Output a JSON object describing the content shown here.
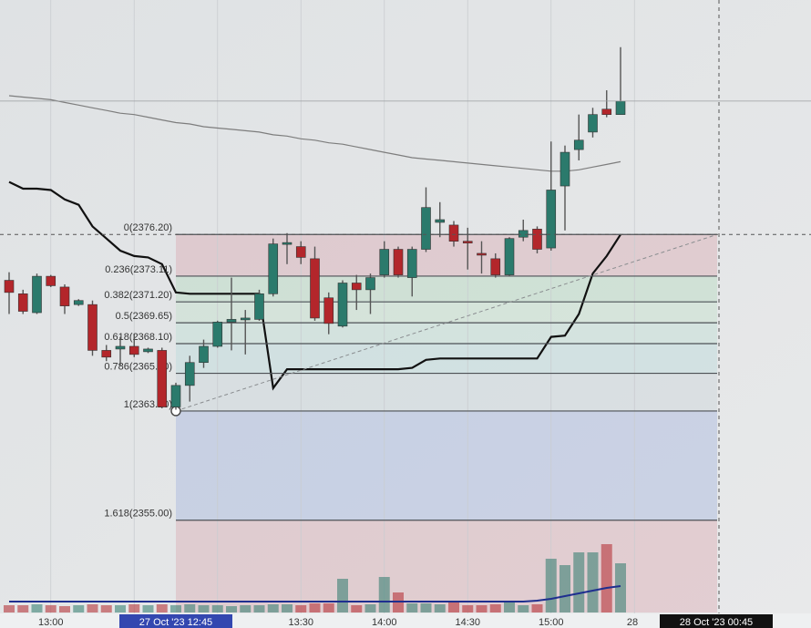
{
  "chart_data": {
    "type": "candlestick",
    "categories": [
      null,
      null,
      null,
      "13:00",
      null,
      null,
      null,
      null,
      null,
      null,
      null,
      null,
      "27 Oct '23 12:45",
      null,
      null,
      null,
      null,
      null,
      null,
      null,
      null,
      "13:30",
      null,
      null,
      null,
      null,
      null,
      "14:00",
      null,
      null,
      null,
      null,
      null,
      "14:30",
      null,
      null,
      null,
      null,
      null,
      "15:00",
      null,
      null,
      null,
      null,
      null
    ],
    "x_axis_end_label": "28",
    "crosshair_time": "28 Oct '23 00:45",
    "open": [
      2372.8,
      2371.8,
      2370.4,
      2373.1,
      2372.3,
      2371.0,
      2371.0,
      2367.6,
      2367.7,
      2367.9,
      2367.5,
      2367.6,
      2363.4,
      2365.0,
      2366.7,
      2367.9,
      2369.7,
      2369.9,
      2369.9,
      2371.8,
      2375.5,
      2375.3,
      2374.4,
      2371.5,
      2369.4,
      2372.6,
      2372.1,
      2373.2,
      2375.1,
      2373.0,
      2375.1,
      2377.1,
      2376.9,
      2375.7,
      2374.8,
      2374.4,
      2373.2,
      2376.0,
      2376.6,
      2375.2,
      2379.8,
      2382.5,
      2383.8,
      2385.5,
      2385.1
    ],
    "high": [
      2373.4,
      2372.1,
      2373.3,
      2373.2,
      2372.5,
      2371.4,
      2371.3,
      2368.0,
      2368.6,
      2368.8,
      2367.8,
      2367.8,
      2365.2,
      2367.2,
      2368.4,
      2369.8,
      2373.0,
      2370.6,
      2372.1,
      2375.9,
      2376.3,
      2375.7,
      2375.3,
      2371.9,
      2372.8,
      2373.2,
      2373.3,
      2375.7,
      2375.3,
      2375.3,
      2379.7,
      2378.6,
      2377.2,
      2376.7,
      2375.7,
      2374.8,
      2376.0,
      2377.3,
      2376.8,
      2383.1,
      2382.8,
      2385.1,
      2385.6,
      2386.9,
      2390.1
    ],
    "low": [
      2370.3,
      2370.3,
      2370.3,
      2372.3,
      2370.3,
      2370.9,
      2367.2,
      2366.8,
      2366.5,
      2367.1,
      2367.4,
      2363.3,
      2363.2,
      2363.8,
      2366.3,
      2367.8,
      2367.6,
      2367.3,
      2369.8,
      2371.6,
      2374.0,
      2374.0,
      2369.8,
      2368.8,
      2369.3,
      2370.6,
      2370.3,
      2373.0,
      2373.0,
      2371.6,
      2374.9,
      2376.0,
      2375.3,
      2373.6,
      2373.3,
      2373.0,
      2373.1,
      2375.7,
      2374.8,
      2375.0,
      2376.5,
      2381.7,
      2383.4,
      2384.9,
      2385.1
    ],
    "close": [
      2371.9,
      2370.5,
      2373.1,
      2372.4,
      2370.9,
      2371.3,
      2367.6,
      2367.1,
      2367.9,
      2367.3,
      2367.7,
      2363.4,
      2365.0,
      2366.7,
      2367.9,
      2369.7,
      2369.9,
      2370.0,
      2371.8,
      2375.5,
      2375.6,
      2374.5,
      2370.0,
      2369.6,
      2372.6,
      2372.1,
      2373.0,
      2375.1,
      2373.2,
      2375.1,
      2378.2,
      2377.3,
      2375.7,
      2375.6,
      2374.7,
      2373.2,
      2375.9,
      2376.5,
      2375.1,
      2379.5,
      2382.3,
      2383.2,
      2385.1,
      2385.1,
      2386.1
    ],
    "up_color": "#2b7a6c",
    "down_color": "#b3262b",
    "ylim": [
      2347.0,
      2393.6
    ],
    "volume": [
      8,
      8,
      9,
      8,
      7,
      8,
      9,
      8,
      8,
      9,
      8,
      9,
      8,
      9,
      8,
      8,
      7,
      8,
      8,
      9,
      9,
      8,
      10,
      10,
      37,
      8,
      9,
      39,
      22,
      10,
      10,
      9,
      12,
      8,
      8,
      9,
      12,
      8,
      9,
      59,
      52,
      66,
      66,
      75,
      54
    ],
    "volume_ma": [
      12,
      12,
      12,
      12,
      12,
      12,
      12,
      12,
      12,
      12,
      12,
      12,
      12,
      12,
      12,
      12,
      12,
      12,
      12,
      12,
      12,
      12,
      12,
      12,
      12,
      12,
      12,
      12,
      12,
      12,
      12,
      12,
      12,
      12,
      12,
      12,
      12,
      12,
      13,
      15,
      18,
      21,
      24,
      27,
      29
    ],
    "volume_ma_color": "#1f2f8f",
    "vlim": [
      0,
      100
    ],
    "overlays": [
      {
        "color": "#111111",
        "width": 2.2,
        "values": [
          2380.1,
          2379.6,
          2379.6,
          2379.5,
          2378.8,
          2378.4,
          2376.8,
          2375.9,
          2375.0,
          2374.6,
          2374.5,
          2374.0,
          2371.9,
          2371.8,
          2371.8,
          2371.8,
          2371.8,
          2371.8,
          2371.8,
          2364.8,
          2366.2,
          2366.2,
          2366.2,
          2366.2,
          2366.2,
          2366.2,
          2366.2,
          2366.2,
          2366.2,
          2366.3,
          2366.9,
          2367.0,
          2367.0,
          2367.0,
          2367.0,
          2367.0,
          2367.0,
          2367.0,
          2367.0,
          2368.6,
          2368.7,
          2370.3,
          2373.3,
          2374.6,
          2376.2
        ]
      },
      {
        "color": "#7d7d7d",
        "width": 1.2,
        "values": [
          2386.5,
          2386.4,
          2386.3,
          2386.2,
          2386.0,
          2385.8,
          2385.6,
          2385.4,
          2385.2,
          2385.1,
          2384.9,
          2384.7,
          2384.5,
          2384.4,
          2384.2,
          2384.1,
          2384.0,
          2383.9,
          2383.8,
          2383.6,
          2383.5,
          2383.3,
          2383.2,
          2383.0,
          2382.9,
          2382.7,
          2382.5,
          2382.3,
          2382.1,
          2381.9,
          2381.8,
          2381.7,
          2381.6,
          2381.5,
          2381.4,
          2381.3,
          2381.2,
          2381.1,
          2381.0,
          2380.9,
          2380.9,
          2381.0,
          2381.2,
          2381.4,
          2381.6
        ]
      }
    ],
    "fib_levels": [
      {
        "value": 2376.2,
        "label": "0(2376.20)",
        "fill": "rgba(214,150,158,0.32)"
      },
      {
        "value": 2373.11,
        "label": "0.236(2373.11)",
        "fill": "rgba(168,214,180,0.35)"
      },
      {
        "value": 2371.2,
        "label": "0.382(2371.20)",
        "fill": "rgba(186,224,196,0.35)"
      },
      {
        "value": 2369.65,
        "label": "0.5(2369.65)",
        "fill": "rgba(180,222,206,0.35)"
      },
      {
        "value": 2368.1,
        "label": "0.618(2368.10)",
        "fill": "rgba(176,214,214,0.35)"
      },
      {
        "value": 2365.9,
        "label": "0.786(2365.90)",
        "fill": "rgba(196,210,216,0.35)"
      },
      {
        "value": 2363.1,
        "label": "1(2363.10)",
        "fill": "rgba(150,168,220,0.35)"
      },
      {
        "value": 2355.0,
        "label": "1.618(2355.00)",
        "fill": "rgba(214,150,158,0.32)"
      }
    ]
  }
}
